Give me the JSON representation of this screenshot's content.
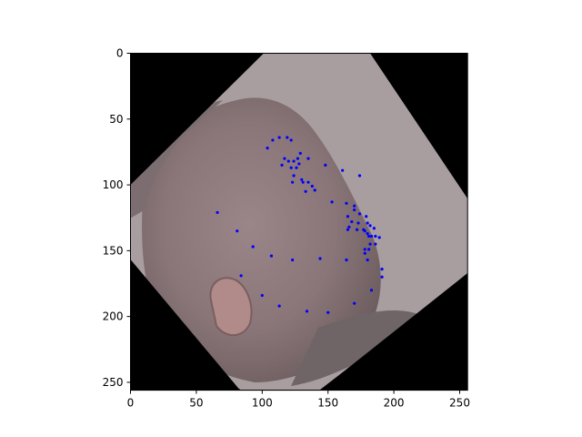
{
  "chart_data": {
    "type": "scatter",
    "title": "",
    "xlabel": "",
    "ylabel": "",
    "xlim": [
      0,
      256
    ],
    "ylim": [
      256,
      0
    ],
    "y_inverted": true,
    "grid": false,
    "legend": "none",
    "background_image": "rotated face photo",
    "x_ticks": [
      0,
      50,
      100,
      150,
      200,
      250
    ],
    "y_ticks": [
      0,
      50,
      100,
      150,
      200,
      250
    ],
    "marker_color": "#0000ff",
    "series": [
      {
        "points": [
          [
            104,
            72
          ],
          [
            108,
            66
          ],
          [
            113,
            64
          ],
          [
            119,
            64
          ],
          [
            122,
            66
          ],
          [
            127,
            80
          ],
          [
            129,
            76
          ],
          [
            135,
            80
          ],
          [
            148,
            85
          ],
          [
            161,
            89
          ],
          [
            174,
            93
          ],
          [
            117,
            80
          ],
          [
            120,
            82
          ],
          [
            124,
            82
          ],
          [
            128,
            84
          ],
          [
            115,
            85
          ],
          [
            122,
            87
          ],
          [
            126,
            87
          ],
          [
            124,
            93
          ],
          [
            130,
            96
          ],
          [
            123,
            98
          ],
          [
            131,
            98
          ],
          [
            135,
            98
          ],
          [
            138,
            101
          ],
          [
            140,
            104
          ],
          [
            133,
            105
          ],
          [
            153,
            113
          ],
          [
            164,
            114
          ],
          [
            170,
            116
          ],
          [
            170,
            119
          ],
          [
            174,
            122
          ],
          [
            179,
            124
          ],
          [
            165,
            124
          ],
          [
            168,
            128
          ],
          [
            173,
            129
          ],
          [
            180,
            129
          ],
          [
            182,
            131
          ],
          [
            185,
            133
          ],
          [
            177,
            134
          ],
          [
            166,
            132
          ],
          [
            165,
            134
          ],
          [
            172,
            134
          ],
          [
            178,
            135
          ],
          [
            180,
            137
          ],
          [
            181,
            139
          ],
          [
            183,
            139
          ],
          [
            186,
            139
          ],
          [
            189,
            140
          ],
          [
            186,
            145
          ],
          [
            182,
            145
          ],
          [
            181,
            149
          ],
          [
            178,
            149
          ],
          [
            191,
            164
          ],
          [
            191,
            170
          ],
          [
            178,
            152
          ],
          [
            180,
            157
          ],
          [
            183,
            180
          ],
          [
            170,
            190
          ],
          [
            150,
            197
          ],
          [
            134,
            196
          ],
          [
            113,
            192
          ],
          [
            100,
            184
          ],
          [
            84,
            169
          ],
          [
            93,
            147
          ],
          [
            81,
            135
          ],
          [
            66,
            121
          ],
          [
            107,
            154
          ],
          [
            123,
            157
          ],
          [
            144,
            156
          ],
          [
            164,
            157
          ]
        ]
      }
    ]
  }
}
